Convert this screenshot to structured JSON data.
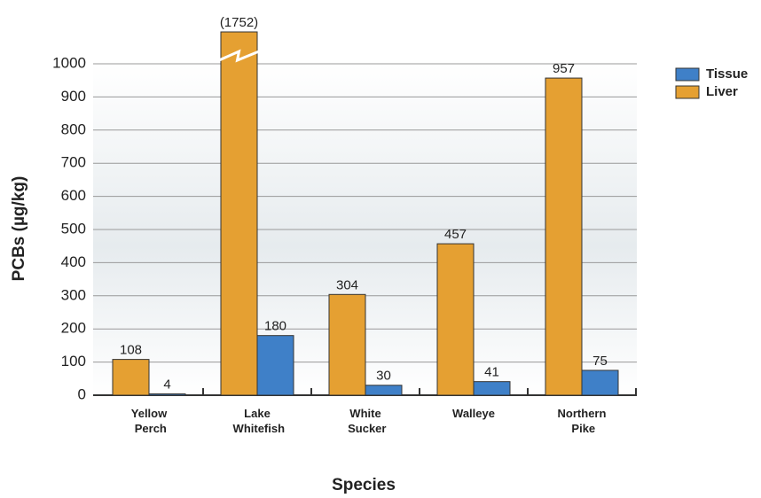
{
  "chart_data": {
    "type": "bar",
    "x_label": "Species",
    "y_label": "PCBs (µg/kg)",
    "categories": [
      "Yellow Perch",
      "Lake Whitefish",
      "White Sucker",
      "Walleye",
      "Northern Pike"
    ],
    "series": [
      {
        "name": "Liver",
        "color": "#e5a032",
        "values": [
          108,
          1752,
          304,
          457,
          957
        ],
        "value_labels": [
          "108",
          "(1752)",
          "304",
          "457",
          "957"
        ]
      },
      {
        "name": "Tissue",
        "color": "#3f80c8",
        "values": [
          4,
          180,
          30,
          41,
          75
        ]
      }
    ],
    "ylim": [
      0,
      1000
    ],
    "yticks": [
      0,
      100,
      200,
      300,
      400,
      500,
      600,
      700,
      800,
      900,
      1000
    ],
    "grid": true
  }
}
